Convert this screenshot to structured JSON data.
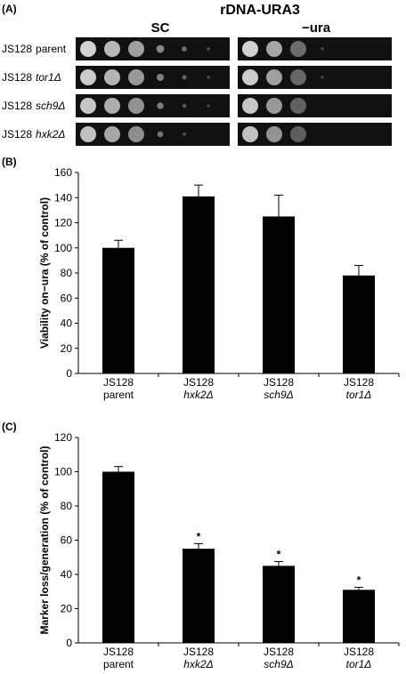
{
  "panel_a": {
    "label": "(A)",
    "title": "rDNA-URA3",
    "columns": [
      "SC",
      "−ura"
    ],
    "rows": [
      [
        "JS128",
        "parent"
      ],
      [
        "JS128",
        "tor1Δ"
      ],
      [
        "JS128",
        "sch9Δ"
      ],
      [
        "JS128",
        "hxk2Δ"
      ]
    ]
  },
  "chart_data": [
    {
      "type": "bar",
      "label": "(B)",
      "ylabel": "Viability on−ura (% of control)",
      "categories": [
        [
          "JS128",
          "parent"
        ],
        [
          "JS128",
          "hxk2Δ"
        ],
        [
          "JS128",
          "sch9Δ"
        ],
        [
          "JS128",
          "tor1Δ"
        ]
      ],
      "values": [
        100,
        141,
        125,
        78
      ],
      "errors": [
        6,
        9,
        17,
        8
      ],
      "color": "#000000",
      "ylim": [
        0,
        160
      ],
      "yticks": [
        0,
        20,
        40,
        60,
        80,
        100,
        120,
        140,
        160
      ]
    },
    {
      "type": "bar",
      "label": "(C)",
      "ylabel": "Marker loss/generation (% of control)",
      "categories": [
        [
          "JS128",
          "parent"
        ],
        [
          "JS128",
          "hxk2Δ"
        ],
        [
          "JS128",
          "sch9Δ"
        ],
        [
          "JS128",
          "tor1Δ"
        ]
      ],
      "values": [
        100,
        55,
        45,
        31
      ],
      "errors": [
        3,
        3,
        2.5,
        1.5
      ],
      "annotations": [
        null,
        "*",
        "*",
        "*"
      ],
      "color": "#000000",
      "ylim": [
        0,
        120
      ],
      "yticks": [
        0,
        20,
        40,
        60,
        80,
        100,
        120
      ]
    }
  ]
}
